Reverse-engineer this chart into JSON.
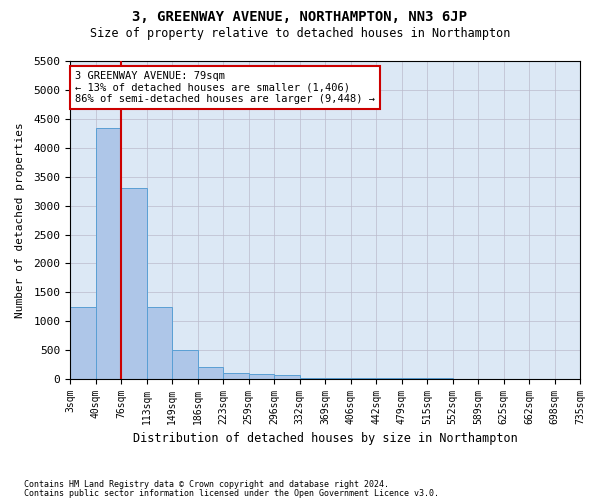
{
  "title": "3, GREENWAY AVENUE, NORTHAMPTON, NN3 6JP",
  "subtitle": "Size of property relative to detached houses in Northampton",
  "xlabel": "Distribution of detached houses by size in Northampton",
  "ylabel": "Number of detached properties",
  "footnote1": "Contains HM Land Registry data © Crown copyright and database right 2024.",
  "footnote2": "Contains public sector information licensed under the Open Government Licence v3.0.",
  "property_label": "3 GREENWAY AVENUE: 79sqm",
  "annotation_line1": "← 13% of detached houses are smaller (1,406)",
  "annotation_line2": "86% of semi-detached houses are larger (9,448) →",
  "bin_edges": [
    "3sqm",
    "40sqm",
    "76sqm",
    "113sqm",
    "149sqm",
    "186sqm",
    "223sqm",
    "259sqm",
    "296sqm",
    "332sqm",
    "369sqm",
    "406sqm",
    "442sqm",
    "479sqm",
    "515sqm",
    "552sqm",
    "589sqm",
    "625sqm",
    "662sqm",
    "698sqm",
    "735sqm"
  ],
  "bar_values": [
    1250,
    4350,
    3300,
    1250,
    500,
    200,
    100,
    80,
    60,
    10,
    10,
    5,
    5,
    5,
    5,
    0,
    0,
    0,
    0,
    0
  ],
  "bar_color": "#aec6e8",
  "bar_edgecolor": "#5a9fd4",
  "vline_color": "#cc0000",
  "vline_x": 2,
  "annotation_box_color": "#cc0000",
  "ylim": [
    0,
    5500
  ],
  "yticks": [
    0,
    500,
    1000,
    1500,
    2000,
    2500,
    3000,
    3500,
    4000,
    4500,
    5000,
    5500
  ],
  "ax_facecolor": "#dce8f5",
  "background_color": "#ffffff",
  "grid_color": "#bbbbcc"
}
